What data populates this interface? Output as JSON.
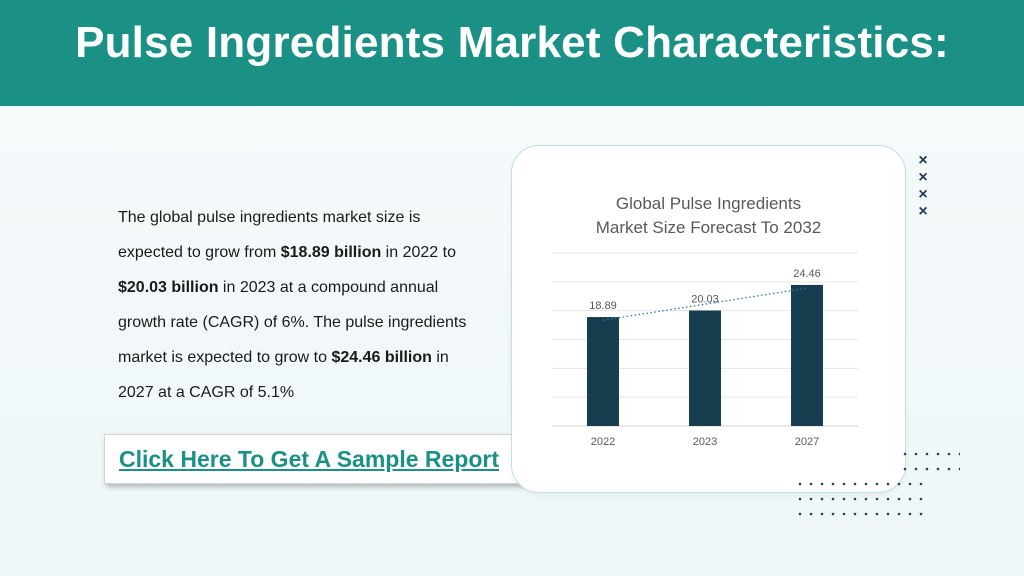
{
  "header": {
    "title": "Pulse Ingredients Market Characteristics:"
  },
  "body": {
    "p1": "The global pulse ingredients market size is expected to grow from ",
    "v1": "$18.89 billion",
    "p2": " in 2022 to ",
    "v2": "$20.03 billion",
    "p3": " in 2023 at a compound annual growth rate (CAGR) of 6%. The pulse ingredients market is expected to grow to ",
    "v3": "$24.46 billion",
    "p4": " in 2027 at a CAGR of 5.1%"
  },
  "cta": {
    "label": "Click Here To Get A Sample Report"
  },
  "decor": {
    "cross_glyph": "×"
  },
  "colors": {
    "header_bg": "#1b9186",
    "bar": "#163e4e",
    "trendline": "#2e75b6",
    "link": "#1b9186"
  },
  "chart_data": {
    "type": "bar",
    "title_line1": "Global Pulse Ingredients",
    "title_line2": "Market Size Forecast To 2032",
    "categories": [
      "2022",
      "2023",
      "2027"
    ],
    "series": [
      {
        "values": [
          18.89,
          20.03,
          24.46
        ]
      }
    ],
    "data_labels": [
      "18.89",
      "20.03",
      "24.46"
    ],
    "ylim": [
      0,
      30
    ],
    "grid": true,
    "trendline": "dotted linear",
    "legend": "none"
  }
}
